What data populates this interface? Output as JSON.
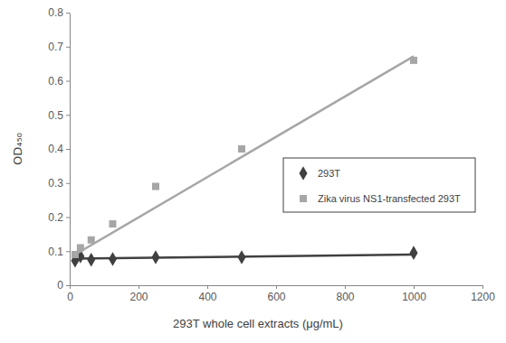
{
  "chart_data": {
    "type": "scatter",
    "x_label": "293T whole cell extracts (μg/mL)",
    "y_label": "OD₄₅₀",
    "x": [
      15.625,
      31.25,
      62.5,
      125,
      250,
      500,
      1000
    ],
    "series": [
      {
        "name": "293T",
        "color": "#404040",
        "marker": "diamond",
        "values": [
          0.072,
          0.085,
          0.075,
          0.077,
          0.082,
          0.082,
          0.095
        ],
        "trend": {
          "x": [
            15.625,
            1000
          ],
          "values": [
            0.078,
            0.09
          ]
        }
      },
      {
        "name": "Zika virus NS1-transfected 293T",
        "color": "#a6a6a6",
        "marker": "square",
        "values": [
          0.09,
          0.11,
          0.133,
          0.18,
          0.29,
          0.4,
          0.66
        ],
        "trend": {
          "x": [
            15.625,
            1000
          ],
          "values": [
            0.09,
            0.672
          ]
        }
      }
    ],
    "xlim": [
      0,
      1200
    ],
    "xticks": [
      0,
      200,
      400,
      600,
      800,
      1000,
      1200
    ],
    "ylim": [
      0,
      0.8
    ],
    "yticks": [
      0,
      0.1,
      0.2,
      0.3,
      0.4,
      0.5,
      0.6,
      0.7,
      0.8
    ],
    "grid": false,
    "legend": "right"
  }
}
